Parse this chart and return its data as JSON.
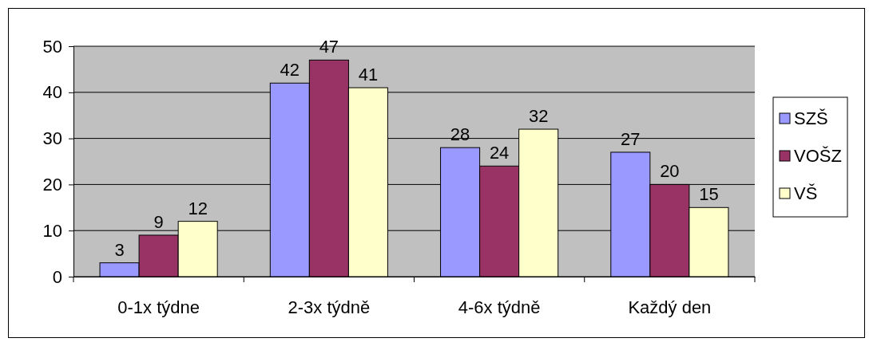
{
  "chart_data": {
    "type": "bar",
    "categories": [
      "0-1x týdne",
      "2-3x týdně",
      "4-6x týdně",
      "Každý den"
    ],
    "series": [
      {
        "name": "SZŠ",
        "color": "#9999ff",
        "values": [
          3,
          42,
          28,
          27
        ]
      },
      {
        "name": "VOŠZ",
        "color": "#993366",
        "values": [
          9,
          47,
          24,
          20
        ]
      },
      {
        "name": "VŠ",
        "color": "#ffffcc",
        "values": [
          12,
          41,
          32,
          15
        ]
      }
    ],
    "ylim": [
      0,
      50
    ],
    "yticks": [
      0,
      10,
      20,
      30,
      40,
      50
    ],
    "grid": "y",
    "legend": "right",
    "data_labels": true
  }
}
